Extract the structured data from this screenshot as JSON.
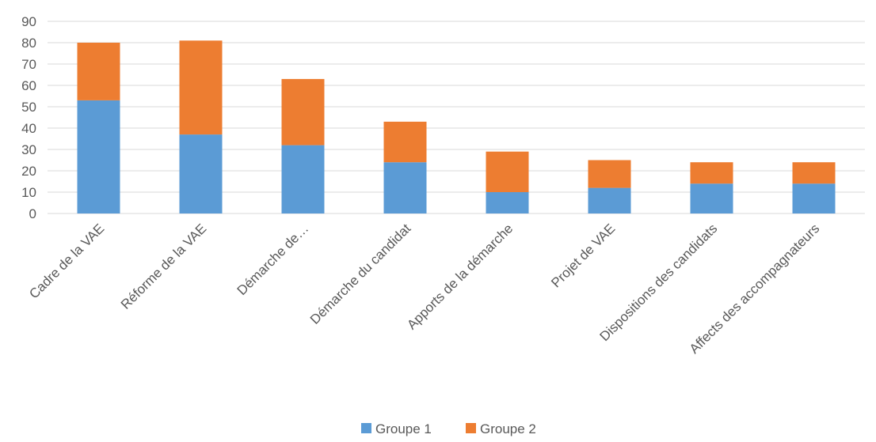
{
  "chart_data": {
    "type": "bar",
    "stacked": true,
    "categories": [
      "Cadre de la VAE",
      "Réforme de la VAE",
      "Démarche de…",
      "Démarche du candidat",
      "Apports de la démarche",
      "Projet de VAE",
      "Dispositions des candidats",
      "Affects des accompagnateurs"
    ],
    "series": [
      {
        "name": "Groupe 1",
        "color": "#5b9bd5",
        "values": [
          53,
          37,
          32,
          24,
          10,
          12,
          14,
          14
        ]
      },
      {
        "name": "Groupe 2",
        "color": "#ed7d31",
        "values": [
          27,
          44,
          31,
          19,
          19,
          13,
          10,
          10
        ]
      }
    ],
    "ylim": [
      0,
      90
    ],
    "yticks": [
      0,
      10,
      20,
      30,
      40,
      50,
      60,
      70,
      80,
      90
    ],
    "grid": true,
    "legend": "bottom-center",
    "title": "",
    "xlabel": "",
    "ylabel": ""
  }
}
